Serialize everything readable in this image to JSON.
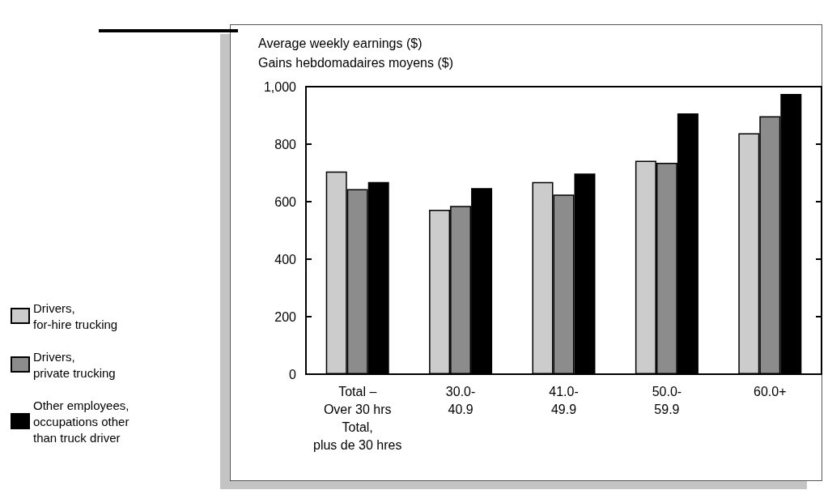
{
  "chart_data": {
    "type": "bar",
    "ylabel": "Average weekly earnings ($)\nGains hebdomadaires moyens ($)",
    "categories": [
      "Total –\nOver 30 hrs\nTotal,\nplus de 30 hres",
      "30.0-\n40.9",
      "41.0-\n49.9",
      "50.0-\n59.9",
      "60.0+"
    ],
    "series": [
      {
        "name": "Drivers,\nfor-hire trucking",
        "color": "#cccccc",
        "values": [
          705,
          572,
          668,
          742,
          838
        ]
      },
      {
        "name": "Drivers,\nprivate trucking",
        "color": "#8c8c8c",
        "values": [
          644,
          585,
          625,
          735,
          897
        ]
      },
      {
        "name": "Other employees,\noccupations other\nthan truck driver",
        "color": "#000000",
        "values": [
          668,
          647,
          698,
          907,
          975
        ]
      }
    ],
    "ylim": [
      0,
      1000
    ],
    "yticks": [
      0,
      200,
      400,
      600,
      800,
      {
        "value": 1000,
        "label": "1,000"
      }
    ],
    "grid": false,
    "legend": "left"
  }
}
